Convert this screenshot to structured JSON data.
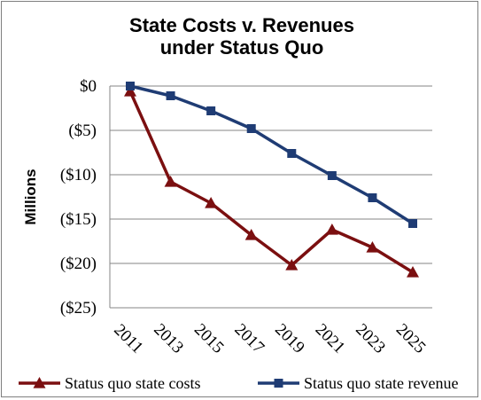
{
  "chart_data": {
    "type": "line",
    "title": [
      "State Costs v. Revenues",
      "under Status Quo"
    ],
    "ylabel": "Millions",
    "xlabel": "",
    "categories": [
      "2011",
      "2013",
      "2015",
      "2017",
      "2019",
      "2021",
      "2023",
      "2025"
    ],
    "yticks": [
      0,
      -5,
      -10,
      -15,
      -20,
      -25
    ],
    "ytick_labels": [
      "$0",
      "($5)",
      "($10)",
      "($15)",
      "($20)",
      "($25)"
    ],
    "ylim": [
      -25,
      0
    ],
    "grid": true,
    "legend_position": "bottom",
    "series": [
      {
        "name": "Status quo state costs",
        "color": "#7b0f10",
        "marker": "triangle",
        "values": [
          -0.6,
          -10.8,
          -13.2,
          -16.8,
          -20.2,
          -16.2,
          -18.2,
          -21.0
        ]
      },
      {
        "name": "Status quo state revenue",
        "color": "#1f3c74",
        "marker": "square",
        "values": [
          0,
          -1.1,
          -2.8,
          -4.8,
          -7.6,
          -10.1,
          -12.6,
          -15.5
        ]
      }
    ]
  }
}
